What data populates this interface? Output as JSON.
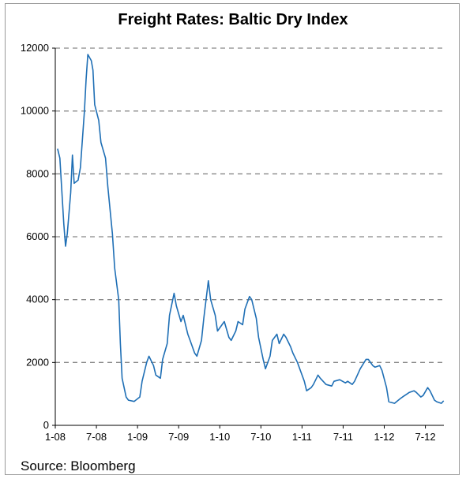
{
  "chart_data": {
    "type": "line",
    "title": "Freight Rates: Baltic Dry Index",
    "source": "Source: Bloomberg",
    "xlabel": "",
    "ylabel": "",
    "x_ticks": [
      "1-08",
      "7-08",
      "1-09",
      "7-09",
      "1-10",
      "7-10",
      "1-11",
      "7-11",
      "1-12",
      "7-12"
    ],
    "y_ticks": [
      0,
      2000,
      4000,
      6000,
      8000,
      10000,
      12000
    ],
    "ylim": [
      0,
      12000
    ],
    "xlim": [
      "2008-01",
      "2012-09"
    ],
    "grid": "horizontal dashed",
    "line_color": "#1f6fb5",
    "series": [
      {
        "name": "",
        "points": [
          [
            "2008-01",
            8800
          ],
          [
            "2008-01",
            8500
          ],
          [
            "2008-02",
            6400
          ],
          [
            "2008-02",
            5700
          ],
          [
            "2008-02",
            6100
          ],
          [
            "2008-03",
            7400
          ],
          [
            "2008-03",
            8600
          ],
          [
            "2008-03",
            7700
          ],
          [
            "2008-04",
            7800
          ],
          [
            "2008-04",
            8200
          ],
          [
            "2008-05",
            10000
          ],
          [
            "2008-05",
            11000
          ],
          [
            "2008-05",
            11800
          ],
          [
            "2008-06",
            11600
          ],
          [
            "2008-06",
            11300
          ],
          [
            "2008-06",
            10200
          ],
          [
            "2008-07",
            9700
          ],
          [
            "2008-07",
            9000
          ],
          [
            "2008-08",
            8500
          ],
          [
            "2008-08",
            7600
          ],
          [
            "2008-09",
            6100
          ],
          [
            "2008-09",
            5000
          ],
          [
            "2008-10",
            4000
          ],
          [
            "2008-10",
            2600
          ],
          [
            "2008-10",
            1500
          ],
          [
            "2008-11",
            900
          ],
          [
            "2008-11",
            800
          ],
          [
            "2008-12",
            760
          ],
          [
            "2009-01",
            900
          ],
          [
            "2009-01",
            1400
          ],
          [
            "2009-02",
            2000
          ],
          [
            "2009-02",
            2200
          ],
          [
            "2009-03",
            1900
          ],
          [
            "2009-03",
            1600
          ],
          [
            "2009-04",
            1500
          ],
          [
            "2009-04",
            2100
          ],
          [
            "2009-05",
            2600
          ],
          [
            "2009-05",
            3500
          ],
          [
            "2009-06",
            4200
          ],
          [
            "2009-06",
            3800
          ],
          [
            "2009-07",
            3300
          ],
          [
            "2009-07",
            3500
          ],
          [
            "2009-08",
            2900
          ],
          [
            "2009-08",
            2700
          ],
          [
            "2009-09",
            2300
          ],
          [
            "2009-09",
            2200
          ],
          [
            "2009-10",
            2700
          ],
          [
            "2009-10",
            3400
          ],
          [
            "2009-11",
            4600
          ],
          [
            "2009-11",
            4000
          ],
          [
            "2009-12",
            3500
          ],
          [
            "2009-12",
            3000
          ],
          [
            "2010-01",
            3200
          ],
          [
            "2010-01",
            3300
          ],
          [
            "2010-02",
            2800
          ],
          [
            "2010-02",
            2700
          ],
          [
            "2010-03",
            3000
          ],
          [
            "2010-03",
            3300
          ],
          [
            "2010-04",
            3200
          ],
          [
            "2010-04",
            3700
          ],
          [
            "2010-05",
            4100
          ],
          [
            "2010-05",
            4000
          ],
          [
            "2010-06",
            3400
          ],
          [
            "2010-06",
            2800
          ],
          [
            "2010-07",
            2100
          ],
          [
            "2010-07",
            1800
          ],
          [
            "2010-08",
            2200
          ],
          [
            "2010-08",
            2700
          ],
          [
            "2010-09",
            2900
          ],
          [
            "2010-09",
            2600
          ],
          [
            "2010-10",
            2900
          ],
          [
            "2010-10",
            2800
          ],
          [
            "2010-11",
            2500
          ],
          [
            "2010-11",
            2300
          ],
          [
            "2010-12",
            2000
          ],
          [
            "2010-12",
            1800
          ],
          [
            "2011-01",
            1400
          ],
          [
            "2011-01",
            1100
          ],
          [
            "2011-02",
            1200
          ],
          [
            "2011-02",
            1300
          ],
          [
            "2011-03",
            1600
          ],
          [
            "2011-03",
            1500
          ],
          [
            "2011-04",
            1300
          ],
          [
            "2011-05",
            1250
          ],
          [
            "2011-05",
            1400
          ],
          [
            "2011-06",
            1450
          ],
          [
            "2011-07",
            1350
          ],
          [
            "2011-07",
            1400
          ],
          [
            "2011-08",
            1300
          ],
          [
            "2011-08",
            1400
          ],
          [
            "2011-09",
            1800
          ],
          [
            "2011-10",
            2100
          ],
          [
            "2011-10",
            2100
          ],
          [
            "2011-11",
            1900
          ],
          [
            "2011-11",
            1850
          ],
          [
            "2011-12",
            1900
          ],
          [
            "2011-12",
            1750
          ],
          [
            "2012-01",
            1200
          ],
          [
            "2012-01",
            750
          ],
          [
            "2012-02",
            700
          ],
          [
            "2012-03",
            850
          ],
          [
            "2012-03",
            900
          ],
          [
            "2012-04",
            1000
          ],
          [
            "2012-04",
            1050
          ],
          [
            "2012-05",
            1100
          ],
          [
            "2012-05",
            1050
          ],
          [
            "2012-06",
            900
          ],
          [
            "2012-06",
            950
          ],
          [
            "2012-07",
            1200
          ],
          [
            "2012-07",
            1100
          ],
          [
            "2012-08",
            800
          ],
          [
            "2012-08",
            750
          ],
          [
            "2012-09",
            700
          ],
          [
            "2012-09",
            780
          ]
        ]
      }
    ]
  }
}
